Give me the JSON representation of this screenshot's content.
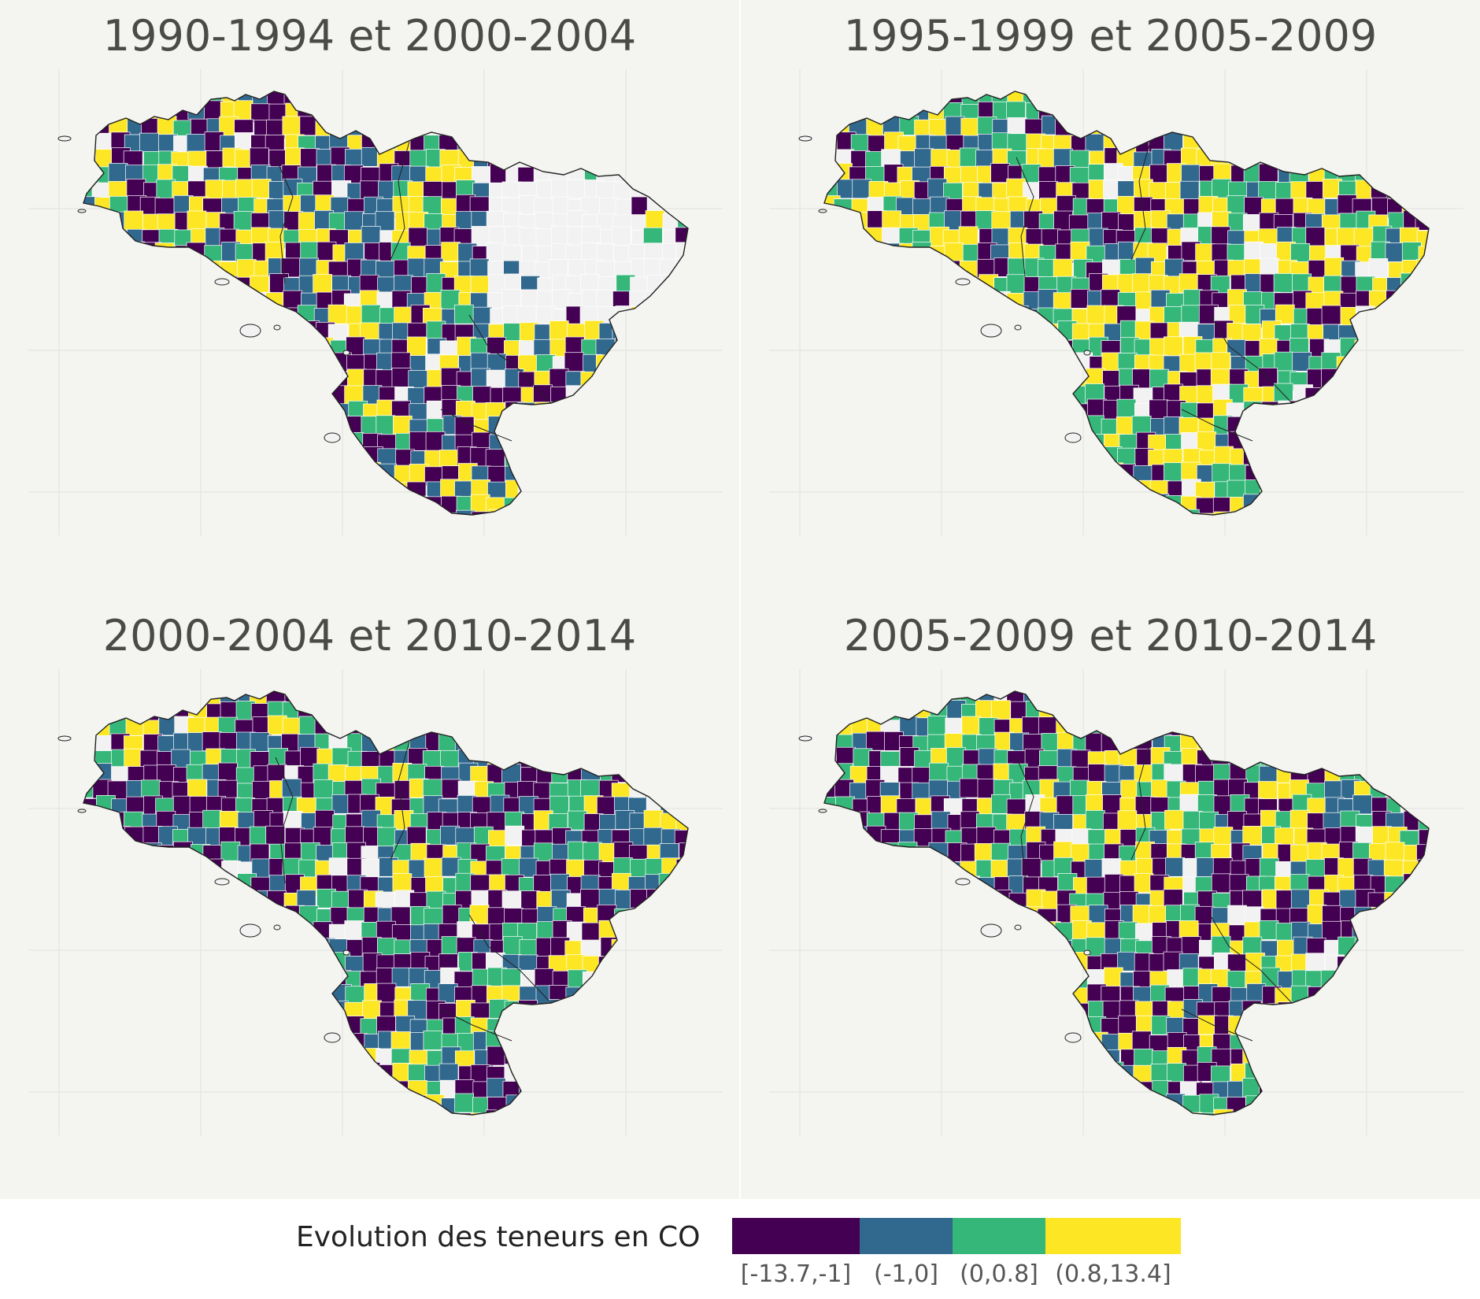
{
  "panels": [
    {
      "title": "1990-1994 et 2000-2004",
      "dominant": [
        "#440154",
        "#31688e",
        "#fde725",
        "#35b779"
      ],
      "blank_east": true
    },
    {
      "title": "1995-1999 et 2005-2009",
      "dominant": [
        "#fde725",
        "#440154",
        "#35b779",
        "#31688e"
      ],
      "blank_east": false
    },
    {
      "title": "2000-2004 et 2010-2014",
      "dominant": [
        "#440154",
        "#35b779",
        "#31688e",
        "#fde725"
      ],
      "blank_east": false
    },
    {
      "title": "2005-2009 et 2010-2014",
      "dominant": [
        "#440154",
        "#35b779",
        "#fde725",
        "#31688e"
      ],
      "blank_east": false
    }
  ],
  "legend": {
    "title": "Evolution des teneurs en CO",
    "classes": [
      {
        "label": "[-13.7,-1]",
        "color": "#440154"
      },
      {
        "label": "(-1,0]",
        "color": "#31688e"
      },
      {
        "label": "(0,0.8]",
        "color": "#35b779"
      },
      {
        "label": "(0.8,13.4]",
        "color": "#fde725"
      }
    ]
  },
  "colors": {
    "background": "#f4f4f0",
    "grid": "#e6e6e2",
    "missing": "#f2f2f2",
    "outline": "#222222"
  }
}
